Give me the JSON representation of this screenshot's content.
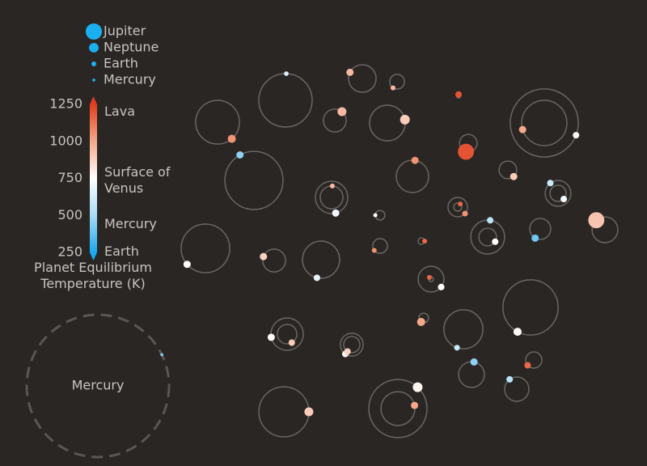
{
  "chart_data": {
    "type": "orbit",
    "legend": [
      {
        "name": "Jupiter",
        "radius": 11.2
      },
      {
        "name": "Neptune",
        "radius": 3.88
      },
      {
        "name": "Earth",
        "radius": 1
      },
      {
        "name": "Mercury",
        "radius": 0.38
      }
    ],
    "colorbar_title": "Planet Equilibrium Temperature (K)",
    "ylim": [
      250,
      1250
    ],
    "yticks": [
      250,
      500,
      750,
      1000,
      1250
    ],
    "colorscale": [
      "#1aa8f0",
      "#a8dcf5",
      "#ffffff",
      "#f5a88a",
      "#e03e1e"
    ],
    "annotations": [
      {
        "value": 1200,
        "label": "Lava"
      },
      {
        "value": 737,
        "label": "Surface of Venus"
      },
      {
        "value": 440,
        "label": "Mercury"
      },
      {
        "value": 255,
        "label": "Earth"
      }
    ],
    "reference": {
      "name": "Mercury",
      "orbit": 0.387,
      "radius": 0.38,
      "temperature": 440
    },
    "systems": [
      {
        "planets": [
          {
            "orbit": 0.145,
            "radius": 0.9,
            "temperature": 650
          }
        ]
      },
      {
        "planets": [
          {
            "orbit": 0.075,
            "radius": 2.25,
            "temperature": 950
          }
        ]
      },
      {
        "planets": [
          {
            "orbit": 0.04,
            "radius": 1,
            "temperature": 950
          }
        ]
      },
      {
        "planets": [
          {
            "orbit": 0.01,
            "radius": 1.8,
            "temperature": 1200
          }
        ]
      },
      {
        "planets": [
          {
            "orbit": 0.119,
            "radius": 2.8,
            "temperature": 1050
          }
        ]
      },
      {
        "planets": [
          {
            "orbit": 0.062,
            "radius": 3.4,
            "temperature": 950
          }
        ]
      },
      {
        "planets": [
          {
            "orbit": 0.097,
            "radius": 4,
            "temperature": 900
          }
        ]
      },
      {
        "planets": [
          {
            "orbit": 0.123,
            "radius": 2.25,
            "temperature": 1000
          },
          {
            "orbit": 0.185,
            "radius": 1.8,
            "temperature": 780
          }
        ]
      },
      {
        "planets": [
          {
            "orbit": 0.048,
            "radius": 11,
            "temperature": 1200
          }
        ]
      },
      {
        "planets": [
          {
            "orbit": 0.158,
            "radius": 2.25,
            "temperature": 450
          }
        ]
      },
      {
        "planets": [
          {
            "orbit": 0.088,
            "radius": 2.25,
            "temperature": 1050
          }
        ]
      },
      {
        "planets": [
          {
            "orbit": 0.048,
            "radius": 2.25,
            "temperature": 900
          }
        ]
      },
      {
        "planets": [
          {
            "orbit": 0.062,
            "radius": 1,
            "temperature": 950
          },
          {
            "orbit": 0.088,
            "radius": 2.25,
            "temperature": 700
          }
        ]
      },
      {
        "planets": [
          {
            "orbit": 0.022,
            "radius": 1,
            "temperature": 1150
          },
          {
            "orbit": 0.053,
            "radius": 1.4,
            "temperature": 1050
          }
        ]
      },
      {
        "planets": [
          {
            "orbit": 0.07,
            "radius": 1.8,
            "temperature": 600
          },
          {
            "orbit": 0.044,
            "radius": 1.8,
            "temperature": 720
          }
        ]
      },
      {
        "planets": [
          {
            "orbit": 0.026,
            "radius": 0.7,
            "temperature": 750
          }
        ]
      },
      {
        "planets": [
          {
            "orbit": 0.018,
            "radius": 1,
            "temperature": 1150
          }
        ]
      },
      {
        "planets": [
          {
            "orbit": 0.092,
            "radius": 1.8,
            "temperature": 550
          },
          {
            "orbit": 0.048,
            "radius": 1.8,
            "temperature": 750
          }
        ]
      },
      {
        "planets": [
          {
            "orbit": 0.057,
            "radius": 2.25,
            "temperature": 400
          }
        ]
      },
      {
        "planets": [
          {
            "orbit": 0.07,
            "radius": 11,
            "temperature": 920
          }
        ]
      },
      {
        "planets": [
          {
            "orbit": 0.132,
            "radius": 2.25,
            "temperature": 760
          }
        ]
      },
      {
        "planets": [
          {
            "orbit": 0.062,
            "radius": 2.25,
            "temperature": 880
          }
        ]
      },
      {
        "planets": [
          {
            "orbit": 0.101,
            "radius": 1.8,
            "temperature": 680
          }
        ]
      },
      {
        "planets": [
          {
            "orbit": 0.04,
            "radius": 1,
            "temperature": 1050
          }
        ]
      },
      {
        "planets": [
          {
            "orbit": 0.07,
            "radius": 1.8,
            "temperature": 750
          },
          {
            "orbit": 0.013,
            "radius": 1,
            "temperature": 1150
          }
        ]
      },
      {
        "planets": [
          {
            "orbit": 0.15,
            "radius": 2.8,
            "temperature": 770
          }
        ]
      },
      {
        "planets": [
          {
            "orbit": 0.026,
            "radius": 2.8,
            "temperature": 1000
          }
        ]
      },
      {
        "planets": [
          {
            "orbit": 0.106,
            "radius": 1.4,
            "temperature": 600
          }
        ]
      },
      {
        "planets": [
          {
            "orbit": 0.088,
            "radius": 2.25,
            "temperature": 760
          },
          {
            "orbit": 0.053,
            "radius": 1.8,
            "temperature": 900
          }
        ]
      },
      {
        "planets": [
          {
            "orbit": 0.062,
            "radius": 1.8,
            "temperature": 780
          },
          {
            "orbit": 0.044,
            "radius": 1.8,
            "temperature": 880
          }
        ]
      },
      {
        "planets": [
          {
            "orbit": 0.044,
            "radius": 1.8,
            "temperature": 1150
          }
        ]
      },
      {
        "planets": [
          {
            "orbit": 0.07,
            "radius": 2.25,
            "temperature": 450
          }
        ]
      },
      {
        "planets": [
          {
            "orbit": 0.066,
            "radius": 1.8,
            "temperature": 550
          }
        ]
      },
      {
        "planets": [
          {
            "orbit": 0.136,
            "radius": 3.4,
            "temperature": 900
          }
        ]
      },
      {
        "planets": [
          {
            "orbit": 0.158,
            "radius": 4,
            "temperature": 780
          },
          {
            "orbit": 0.092,
            "radius": 2.25,
            "temperature": 1000
          }
        ]
      }
    ]
  }
}
